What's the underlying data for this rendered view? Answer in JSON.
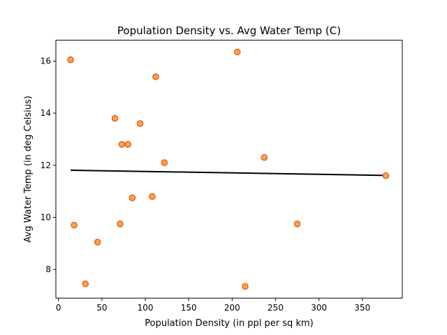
{
  "colors": {
    "point_fill": "#f5a54a",
    "point_edge": "#e8531a",
    "line": "#000000",
    "axes": "#000000"
  },
  "chart_data": {
    "type": "scatter",
    "title": "Population Density vs. Avg Water Temp (C)",
    "xlabel": "Population Density (in ppl per sq km)",
    "ylabel": "Avg Water Temp (in deg Celsius)",
    "xlim": [
      -3,
      396
    ],
    "ylim": [
      6.9,
      16.8
    ],
    "xticks": [
      0,
      50,
      100,
      150,
      200,
      250,
      300,
      350
    ],
    "yticks": [
      8,
      10,
      12,
      14,
      16
    ],
    "grid": false,
    "legend": "none",
    "series": [
      {
        "type": "scatter",
        "points": [
          {
            "x": 14,
            "y": 16.05
          },
          {
            "x": 206,
            "y": 16.35
          },
          {
            "x": 112,
            "y": 15.4
          },
          {
            "x": 65,
            "y": 13.8
          },
          {
            "x": 94,
            "y": 13.6
          },
          {
            "x": 73,
            "y": 12.8
          },
          {
            "x": 80,
            "y": 12.8
          },
          {
            "x": 237,
            "y": 12.3
          },
          {
            "x": 122,
            "y": 12.1
          },
          {
            "x": 377,
            "y": 11.6
          },
          {
            "x": 108,
            "y": 10.8
          },
          {
            "x": 85,
            "y": 10.75
          },
          {
            "x": 18,
            "y": 9.7
          },
          {
            "x": 71,
            "y": 9.75
          },
          {
            "x": 275,
            "y": 9.75
          },
          {
            "x": 45,
            "y": 9.05
          },
          {
            "x": 31,
            "y": 7.45
          },
          {
            "x": 215,
            "y": 7.35
          }
        ]
      },
      {
        "type": "line",
        "points": [
          {
            "x": 14,
            "y": 11.81
          },
          {
            "x": 377,
            "y": 11.61
          }
        ]
      }
    ]
  }
}
